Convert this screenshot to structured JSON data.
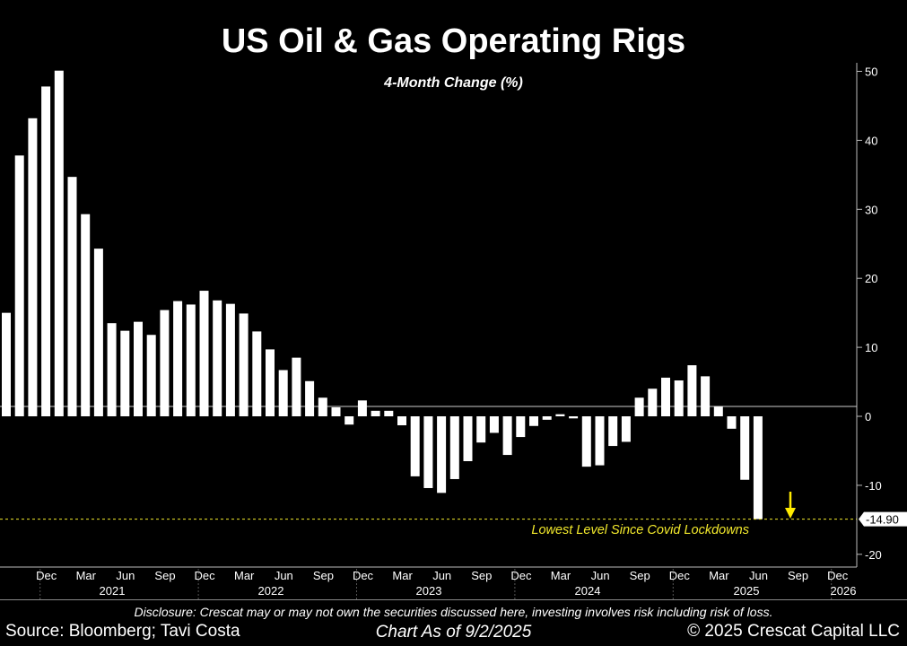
{
  "chart_data": {
    "type": "bar",
    "title": "US Oil & Gas Operating Rigs",
    "subtitle": "4-Month Change (%)",
    "ylim": [
      -22,
      52
    ],
    "yticks": [
      50,
      40,
      30,
      20,
      10,
      0,
      -10,
      -20
    ],
    "xaxis_start": "2020-11",
    "values": [
      15,
      37.8,
      43.2,
      47.8,
      50.1,
      34.7,
      29.3,
      24.3,
      13.5,
      12.4,
      13.7,
      11.8,
      15.4,
      16.7,
      16.2,
      18.2,
      16.8,
      16.3,
      14.9,
      12.3,
      9.7,
      6.7,
      8.5,
      5.1,
      2.7,
      1.3,
      -1.2,
      2.3,
      0.8,
      0.8,
      -1.3,
      -8.7,
      -10.4,
      -11.1,
      -9.1,
      -6.5,
      -3.8,
      -2.4,
      -5.6,
      -3.0,
      -1.4,
      -0.5,
      0.3,
      -0.3,
      -7.3,
      -7.1,
      -4.3,
      -3.7,
      2.7,
      4.0,
      5.6,
      5.2,
      7.4,
      5.8,
      1.4,
      -1.8,
      -9.2,
      -14.9
    ],
    "x_tick_labels": [
      "Dec",
      "Mar",
      "Jun",
      "Sep",
      "Dec",
      "Mar",
      "Jun",
      "Sep",
      "Dec",
      "Mar",
      "Jun",
      "Sep",
      "Dec",
      "Mar",
      "Jun",
      "Sep",
      "Dec",
      "Mar",
      "Jun",
      "Sep",
      "Dec"
    ],
    "year_labels": [
      "2021",
      "2022",
      "2023",
      "2024",
      "2025",
      "2026"
    ],
    "last_value_label": "-14.90",
    "annotation": "Lowest Level Since Covid Lockdowns",
    "colors": {
      "bar": "#ffffff",
      "background": "#000000",
      "annotation": "#f2e92c",
      "arrow": "#ffeb00",
      "zero_line": "#cccccc"
    }
  },
  "footer": {
    "disclosure": "Disclosure: Crescat may or may not own the securities discussed here, investing involves risk including risk of loss.",
    "source": "Source: Bloomberg; Tavi Costa",
    "as_of": "Chart As of 9/2/2025",
    "copyright": "© 2025 Crescat Capital LLC"
  }
}
